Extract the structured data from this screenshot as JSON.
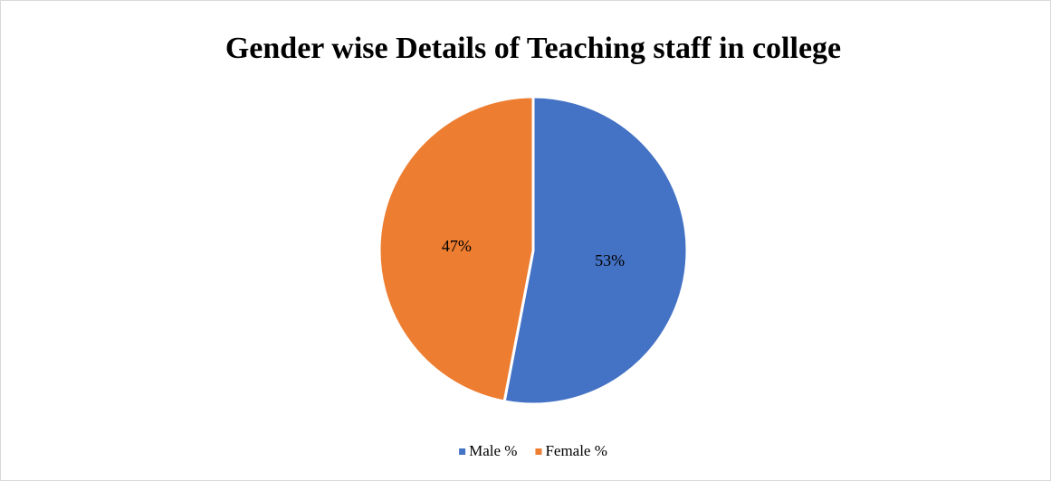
{
  "chart_data": {
    "type": "pie",
    "title": "Gender wise Details of Teaching staff in college",
    "categories": [
      "Male %",
      "Female %"
    ],
    "values": [
      53,
      47
    ],
    "value_labels": [
      "53%",
      "47%"
    ],
    "colors": [
      "#4472c4",
      "#ed7d31"
    ],
    "legend": "bottom"
  }
}
